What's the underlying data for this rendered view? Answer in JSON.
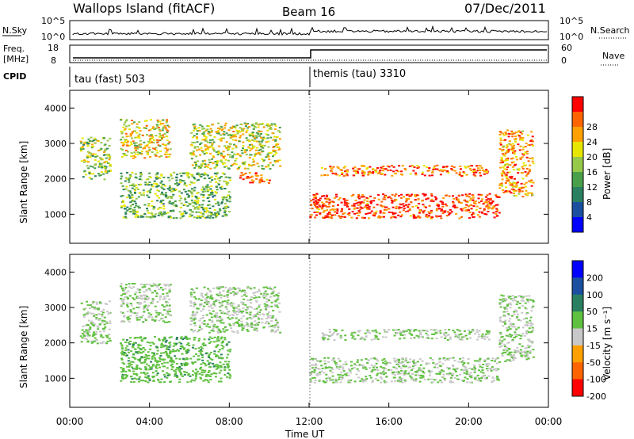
{
  "header": {
    "station": "Wallops Island (fitACF)",
    "beam": "Beam 16",
    "date": "07/Dec/2011"
  },
  "panels": {
    "nsky": {
      "label": "N.Sky",
      "tick_hi": "10^5",
      "tick_lo": "10^0"
    },
    "nsearch": {
      "label": "N.Search",
      "tick_hi": "10^5",
      "tick_lo": "10^0"
    },
    "freq": {
      "label_top": "Freq.",
      "label_unit": "[MHz]",
      "tick_hi": "18",
      "tick_lo": "8"
    },
    "nave": {
      "label": "Nave",
      "tick_hi": "60",
      "tick_lo": "0"
    },
    "cpid": {
      "label": "CPID",
      "mode1": "tau (fast) 503",
      "mode2": "themis (tau) 3310"
    }
  },
  "colors": {
    "power_scale": [
      "#0000ff",
      "#1c4fa0",
      "#2a8060",
      "#4aa04a",
      "#96c84a",
      "#e6e600",
      "#ffa000",
      "#ff6400",
      "#ff0000"
    ],
    "velocity_scale": [
      "#0000ff",
      "#1c4fa0",
      "#2a8060",
      "#60c040",
      "#c8c8c8",
      "#ffa000",
      "#ff6400",
      "#ff0000"
    ]
  },
  "chart_data": [
    {
      "type": "heatmap",
      "name": "power",
      "ylabel": "Slant Range [km]",
      "yticks": [
        "1000",
        "2000",
        "3000",
        "4000"
      ],
      "ylim": [
        180,
        4500
      ],
      "xlim": [
        0,
        24
      ],
      "colorbar_label": "Power [dB]",
      "colorbar_ticks": [
        "4",
        "8",
        "12",
        "16",
        "20",
        "24",
        "28"
      ],
      "colorbar_range": [
        0,
        32
      ],
      "regions": [
        {
          "t": [
            0.5,
            2.0
          ],
          "r": [
            2000,
            3200
          ],
          "level": 16
        },
        {
          "t": [
            2.5,
            5.0
          ],
          "r": [
            2600,
            3700
          ],
          "level": 20
        },
        {
          "t": [
            2.5,
            8.0
          ],
          "r": [
            900,
            2200
          ],
          "level": 14
        },
        {
          "t": [
            6.0,
            10.5
          ],
          "r": [
            2300,
            3600
          ],
          "level": 18
        },
        {
          "t": [
            8.5,
            10.0
          ],
          "r": [
            1900,
            2200
          ],
          "level": 28
        },
        {
          "t": [
            12.0,
            21.5
          ],
          "r": [
            900,
            1600
          ],
          "level": 28
        },
        {
          "t": [
            12.5,
            21.0
          ],
          "r": [
            2100,
            2400
          ],
          "level": 26
        },
        {
          "t": [
            21.5,
            23.2
          ],
          "r": [
            1500,
            3400
          ],
          "level": 24
        }
      ]
    },
    {
      "type": "heatmap",
      "name": "velocity",
      "ylabel": "Slant Range [km]",
      "yticks": [
        "1000",
        "2000",
        "3000",
        "4000"
      ],
      "ylim": [
        180,
        4500
      ],
      "xlim": [
        0,
        24
      ],
      "xticks": [
        "00:00",
        "04:00",
        "08:00",
        "12:00",
        "16:00",
        "20:00",
        "00:00"
      ],
      "xlabel": "Time UT",
      "colorbar_label": "Velocity [m s⁻¹]",
      "colorbar_ticks": [
        "200",
        "100",
        "50",
        "15",
        "-15",
        "-50",
        "-100",
        "-200"
      ],
      "colorbar_range": [
        -250,
        250
      ],
      "regions": [
        {
          "t": [
            0.5,
            2.0
          ],
          "r": [
            2000,
            3200
          ],
          "level": 0
        },
        {
          "t": [
            2.5,
            5.0
          ],
          "r": [
            2600,
            3700
          ],
          "level": 0
        },
        {
          "t": [
            2.5,
            8.0
          ],
          "r": [
            900,
            2200
          ],
          "level": 40
        },
        {
          "t": [
            6.0,
            10.5
          ],
          "r": [
            2300,
            3600
          ],
          "level": 0
        },
        {
          "t": [
            12.0,
            21.5
          ],
          "r": [
            900,
            1600
          ],
          "level": 0
        },
        {
          "t": [
            12.5,
            21.0
          ],
          "r": [
            2100,
            2400
          ],
          "level": 0
        },
        {
          "t": [
            21.5,
            23.2
          ],
          "r": [
            1500,
            3400
          ],
          "level": 0
        }
      ]
    }
  ]
}
